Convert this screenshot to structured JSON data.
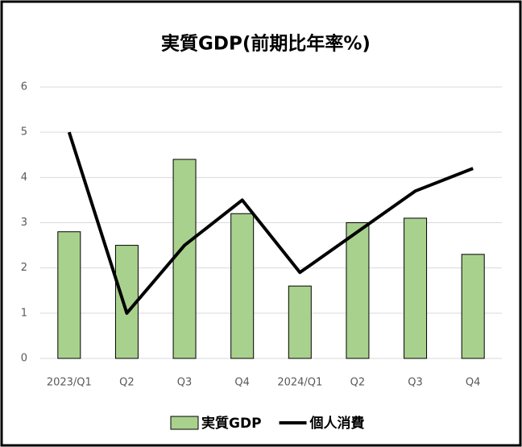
{
  "chart_data": {
    "type": "bar",
    "title": "実質GDP(前期比年率%)",
    "categories": [
      "2023/Q1",
      "Q2",
      "Q3",
      "Q4",
      "2024/Q1",
      "Q2",
      "Q3",
      "Q4"
    ],
    "series": [
      {
        "name": "実質GDP",
        "type": "bar",
        "color": "#a9d18e",
        "values": [
          2.8,
          2.5,
          4.4,
          3.2,
          1.6,
          3.0,
          3.1,
          2.3
        ]
      },
      {
        "name": "個人消費",
        "type": "line",
        "color": "#000000",
        "values": [
          5.0,
          1.0,
          2.5,
          3.5,
          1.9,
          2.8,
          3.7,
          4.2
        ]
      }
    ],
    "ylim": [
      0,
      6
    ],
    "yticks": [
      0,
      1,
      2,
      3,
      4,
      5,
      6
    ],
    "grid": true,
    "legend": "bottom"
  }
}
